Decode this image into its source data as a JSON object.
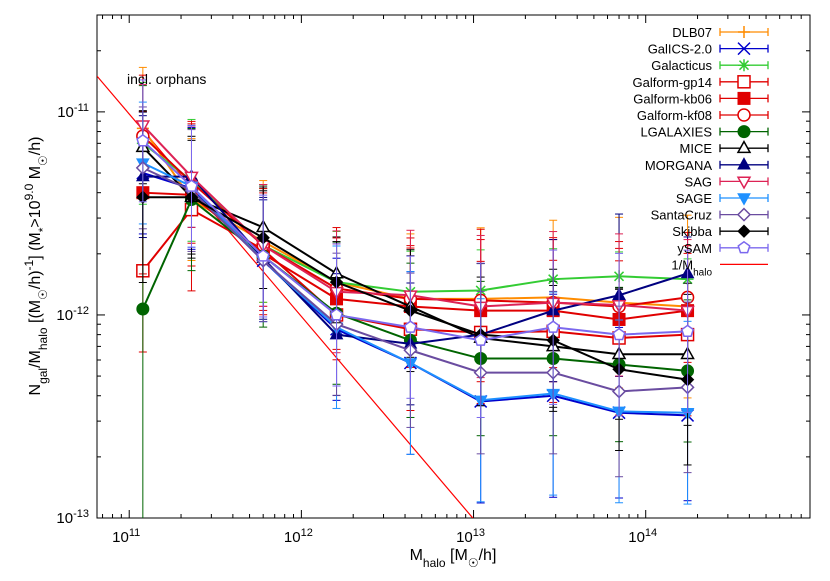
{
  "chart_data": {
    "type": "line",
    "annotation": "incl. orphans",
    "xlabel": {
      "base": "M",
      "sub": "halo",
      "rest": " [M",
      "sun": "☉",
      "end": "/h]"
    },
    "ylabel": {
      "n": "N",
      "n_sub": "gal",
      "slash": "/M",
      "m_sub": "halo",
      "mid": " [(M",
      "sun": "☉",
      "mid2": "/h)",
      "exp": "-1",
      "mid3": "] (M",
      "star_sub": "*",
      "gt": ">10",
      "exp2": "9.0",
      "end_m": " M",
      "sun2": "☉",
      "end": "/h)"
    },
    "x_scale": "log",
    "y_scale": "log",
    "xlim": [
      65000000000.0,
      900000000000000.0
    ],
    "ylim": [
      1e-13,
      3e-11
    ],
    "x_ticks": [
      {
        "value": 100000000000.0,
        "base": "10",
        "exp": "11"
      },
      {
        "value": 1000000000000.0,
        "base": "10",
        "exp": "12"
      },
      {
        "value": 10000000000000.0,
        "base": "10",
        "exp": "13"
      },
      {
        "value": 100000000000000.0,
        "base": "10",
        "exp": "14"
      }
    ],
    "y_ticks": [
      {
        "value": 1e-13,
        "base": "10",
        "exp": "-13"
      },
      {
        "value": 1e-12,
        "base": "10",
        "exp": "-12"
      },
      {
        "value": 1e-11,
        "base": "10",
        "exp": "-11"
      }
    ],
    "grid": false,
    "legend_position": "top-right",
    "x": [
      120000000000.0,
      230000000000.0,
      600000000000.0,
      1600000000000.0,
      4300000000000.0,
      11000000000000.0,
      29000000000000.0,
      70000000000000.0,
      175000000000000.0
    ],
    "reference_line": {
      "name": "1/M",
      "name_sub": "halo",
      "color": "#ff0000",
      "points": [
        [
          65000000000.0,
          1.5e-11
        ],
        [
          11000000000000.0,
          9e-14
        ]
      ]
    },
    "series": [
      {
        "name": "DLB07",
        "color": "#ff8c00",
        "marker": "plus",
        "values": [
          8.3e-12,
          3.7e-12,
          2.3e-12,
          1.45e-12,
          1.2e-12,
          1.2e-12,
          1.22e-12,
          1.15e-12,
          1.1e-12
        ],
        "err": [
          0.3,
          0.3,
          0.3,
          0.25,
          0.32,
          0.35,
          0.38,
          0.42,
          0.45
        ]
      },
      {
        "name": "GalICS-2.0",
        "color": "#0000cc",
        "marker": "x",
        "values": [
          5e-12,
          4.2e-12,
          1.85e-12,
          8.5e-13,
          5.8e-13,
          3.75e-13,
          4e-13,
          3.3e-13,
          3.2e-13
        ],
        "err": [
          0.3,
          0.3,
          0.3,
          0.35,
          0.45,
          0.5,
          0.5,
          0.42,
          0.42
        ]
      },
      {
        "name": "Galacticus",
        "color": "#33cc33",
        "marker": "star",
        "values": [
          7e-12,
          4.6e-12,
          2.2e-12,
          1.45e-12,
          1.3e-12,
          1.32e-12,
          1.5e-12,
          1.55e-12,
          1.5e-12
        ],
        "err": [
          0.3,
          0.3,
          0.28,
          0.25,
          0.2,
          0.2,
          0.15,
          0.12,
          0.1
        ]
      },
      {
        "name": "Galform-gp14",
        "color": "#e00000",
        "marker": "open-square",
        "values": [
          1.65e-12,
          3.3e-12,
          2.1e-12,
          1e-12,
          8.5e-13,
          8.2e-13,
          8.3e-13,
          7.7e-13,
          8e-13
        ],
        "err": [
          0.4,
          0.4,
          0.3,
          0.35,
          0.4,
          0.35,
          0.35,
          0.38,
          0.4
        ]
      },
      {
        "name": "Galform-kb06",
        "color": "#e00000",
        "marker": "filled-square",
        "values": [
          4e-12,
          3.9e-12,
          2e-12,
          1.2e-12,
          1.1e-12,
          1.05e-12,
          1.05e-12,
          9.5e-13,
          1.05e-12
        ],
        "err": [
          0.4,
          0.35,
          0.3,
          0.3,
          0.3,
          0.35,
          0.35,
          0.35,
          0.32
        ]
      },
      {
        "name": "Galform-kf08",
        "color": "#e00000",
        "marker": "open-circle",
        "values": [
          7.6e-12,
          4.5e-12,
          2.2e-12,
          1.35e-12,
          1.2e-12,
          1.18e-12,
          1.15e-12,
          1.1e-12,
          1.22e-12
        ],
        "err": [
          0.3,
          0.3,
          0.3,
          0.3,
          0.3,
          0.35,
          0.32,
          0.32,
          0.32
        ]
      },
      {
        "name": "LGALAXIES",
        "color": "#006400",
        "marker": "filled-circle",
        "values": [
          1.07e-12,
          3.7e-12,
          1.95e-12,
          1.02e-12,
          7.5e-13,
          6.1e-13,
          6.1e-13,
          5.7e-13,
          5.3e-13
        ],
        "err": [
          1.1,
          0.35,
          0.35,
          0.35,
          0.38,
          0.38,
          0.38,
          0.38,
          0.35
        ]
      },
      {
        "name": "MICE",
        "color": "#000000",
        "marker": "open-triangle",
        "values": [
          6.7e-12,
          3.8e-12,
          2.7e-12,
          1.6e-12,
          1.1e-12,
          7.7e-13,
          7e-13,
          6.4e-13,
          6.4e-13
        ],
        "err": [
          0.18,
          0.28,
          0.18,
          0.18,
          0.25,
          0.3,
          0.3,
          0.32,
          0.35
        ]
      },
      {
        "name": "MORGANA",
        "color": "#000080",
        "marker": "filled-triangle",
        "values": [
          4.8e-12,
          4.8e-12,
          1.9e-12,
          8e-13,
          7.2e-13,
          8e-13,
          1.05e-12,
          1.25e-12,
          1.6e-12
        ],
        "err": [
          0.3,
          0.25,
          0.3,
          0.3,
          0.3,
          0.35,
          0.35,
          0.4,
          0.18
        ]
      },
      {
        "name": "SAG",
        "color": "#dd2255",
        "marker": "open-triangle-down",
        "values": [
          8.6e-12,
          4.8e-12,
          2.2e-12,
          1.3e-12,
          1.25e-12,
          1.1e-12,
          1.15e-12,
          1.12e-12,
          1.05e-12
        ],
        "err": [
          0.2,
          0.25,
          0.3,
          0.3,
          0.32,
          0.35,
          0.35,
          0.35,
          0.35
        ]
      },
      {
        "name": "SAGE",
        "color": "#1e90ff",
        "marker": "filled-triangle-down",
        "values": [
          5.6e-12,
          4.3e-12,
          1.85e-12,
          8.7e-13,
          5.8e-13,
          3.8e-13,
          4.1e-13,
          3.35e-13,
          3.3e-13
        ],
        "err": [
          0.3,
          0.3,
          0.3,
          0.4,
          0.45,
          0.5,
          0.5,
          0.45,
          0.45
        ]
      },
      {
        "name": "SantaCruz",
        "color": "#6a4ca0",
        "marker": "open-diamond",
        "values": [
          5.3e-12,
          4.1e-12,
          1.85e-12,
          9e-13,
          6.7e-13,
          5.2e-13,
          5.2e-13,
          4.2e-13,
          4.4e-13
        ],
        "err": [
          0.3,
          0.3,
          0.3,
          0.35,
          0.38,
          0.4,
          0.4,
          0.42,
          0.42
        ]
      },
      {
        "name": "Skibba",
        "color": "#000000",
        "marker": "filled-diamond",
        "values": [
          3.8e-12,
          3.8e-12,
          2.4e-12,
          1.45e-12,
          1.05e-12,
          8e-13,
          7.5e-13,
          5.4e-13,
          4.8e-13
        ],
        "err": [
          0.42,
          0.3,
          0.25,
          0.2,
          0.3,
          0.35,
          0.35,
          0.4,
          0.42
        ]
      },
      {
        "name": "ySAM",
        "color": "#7b68ee",
        "marker": "open-pentagon",
        "values": [
          7.2e-12,
          4.3e-12,
          1.95e-12,
          1e-12,
          8.7e-13,
          7.5e-13,
          8.7e-13,
          8e-13,
          8.3e-13
        ],
        "err": [
          0.3,
          0.3,
          0.3,
          0.35,
          0.35,
          0.38,
          0.38,
          0.4,
          0.4
        ]
      }
    ]
  }
}
